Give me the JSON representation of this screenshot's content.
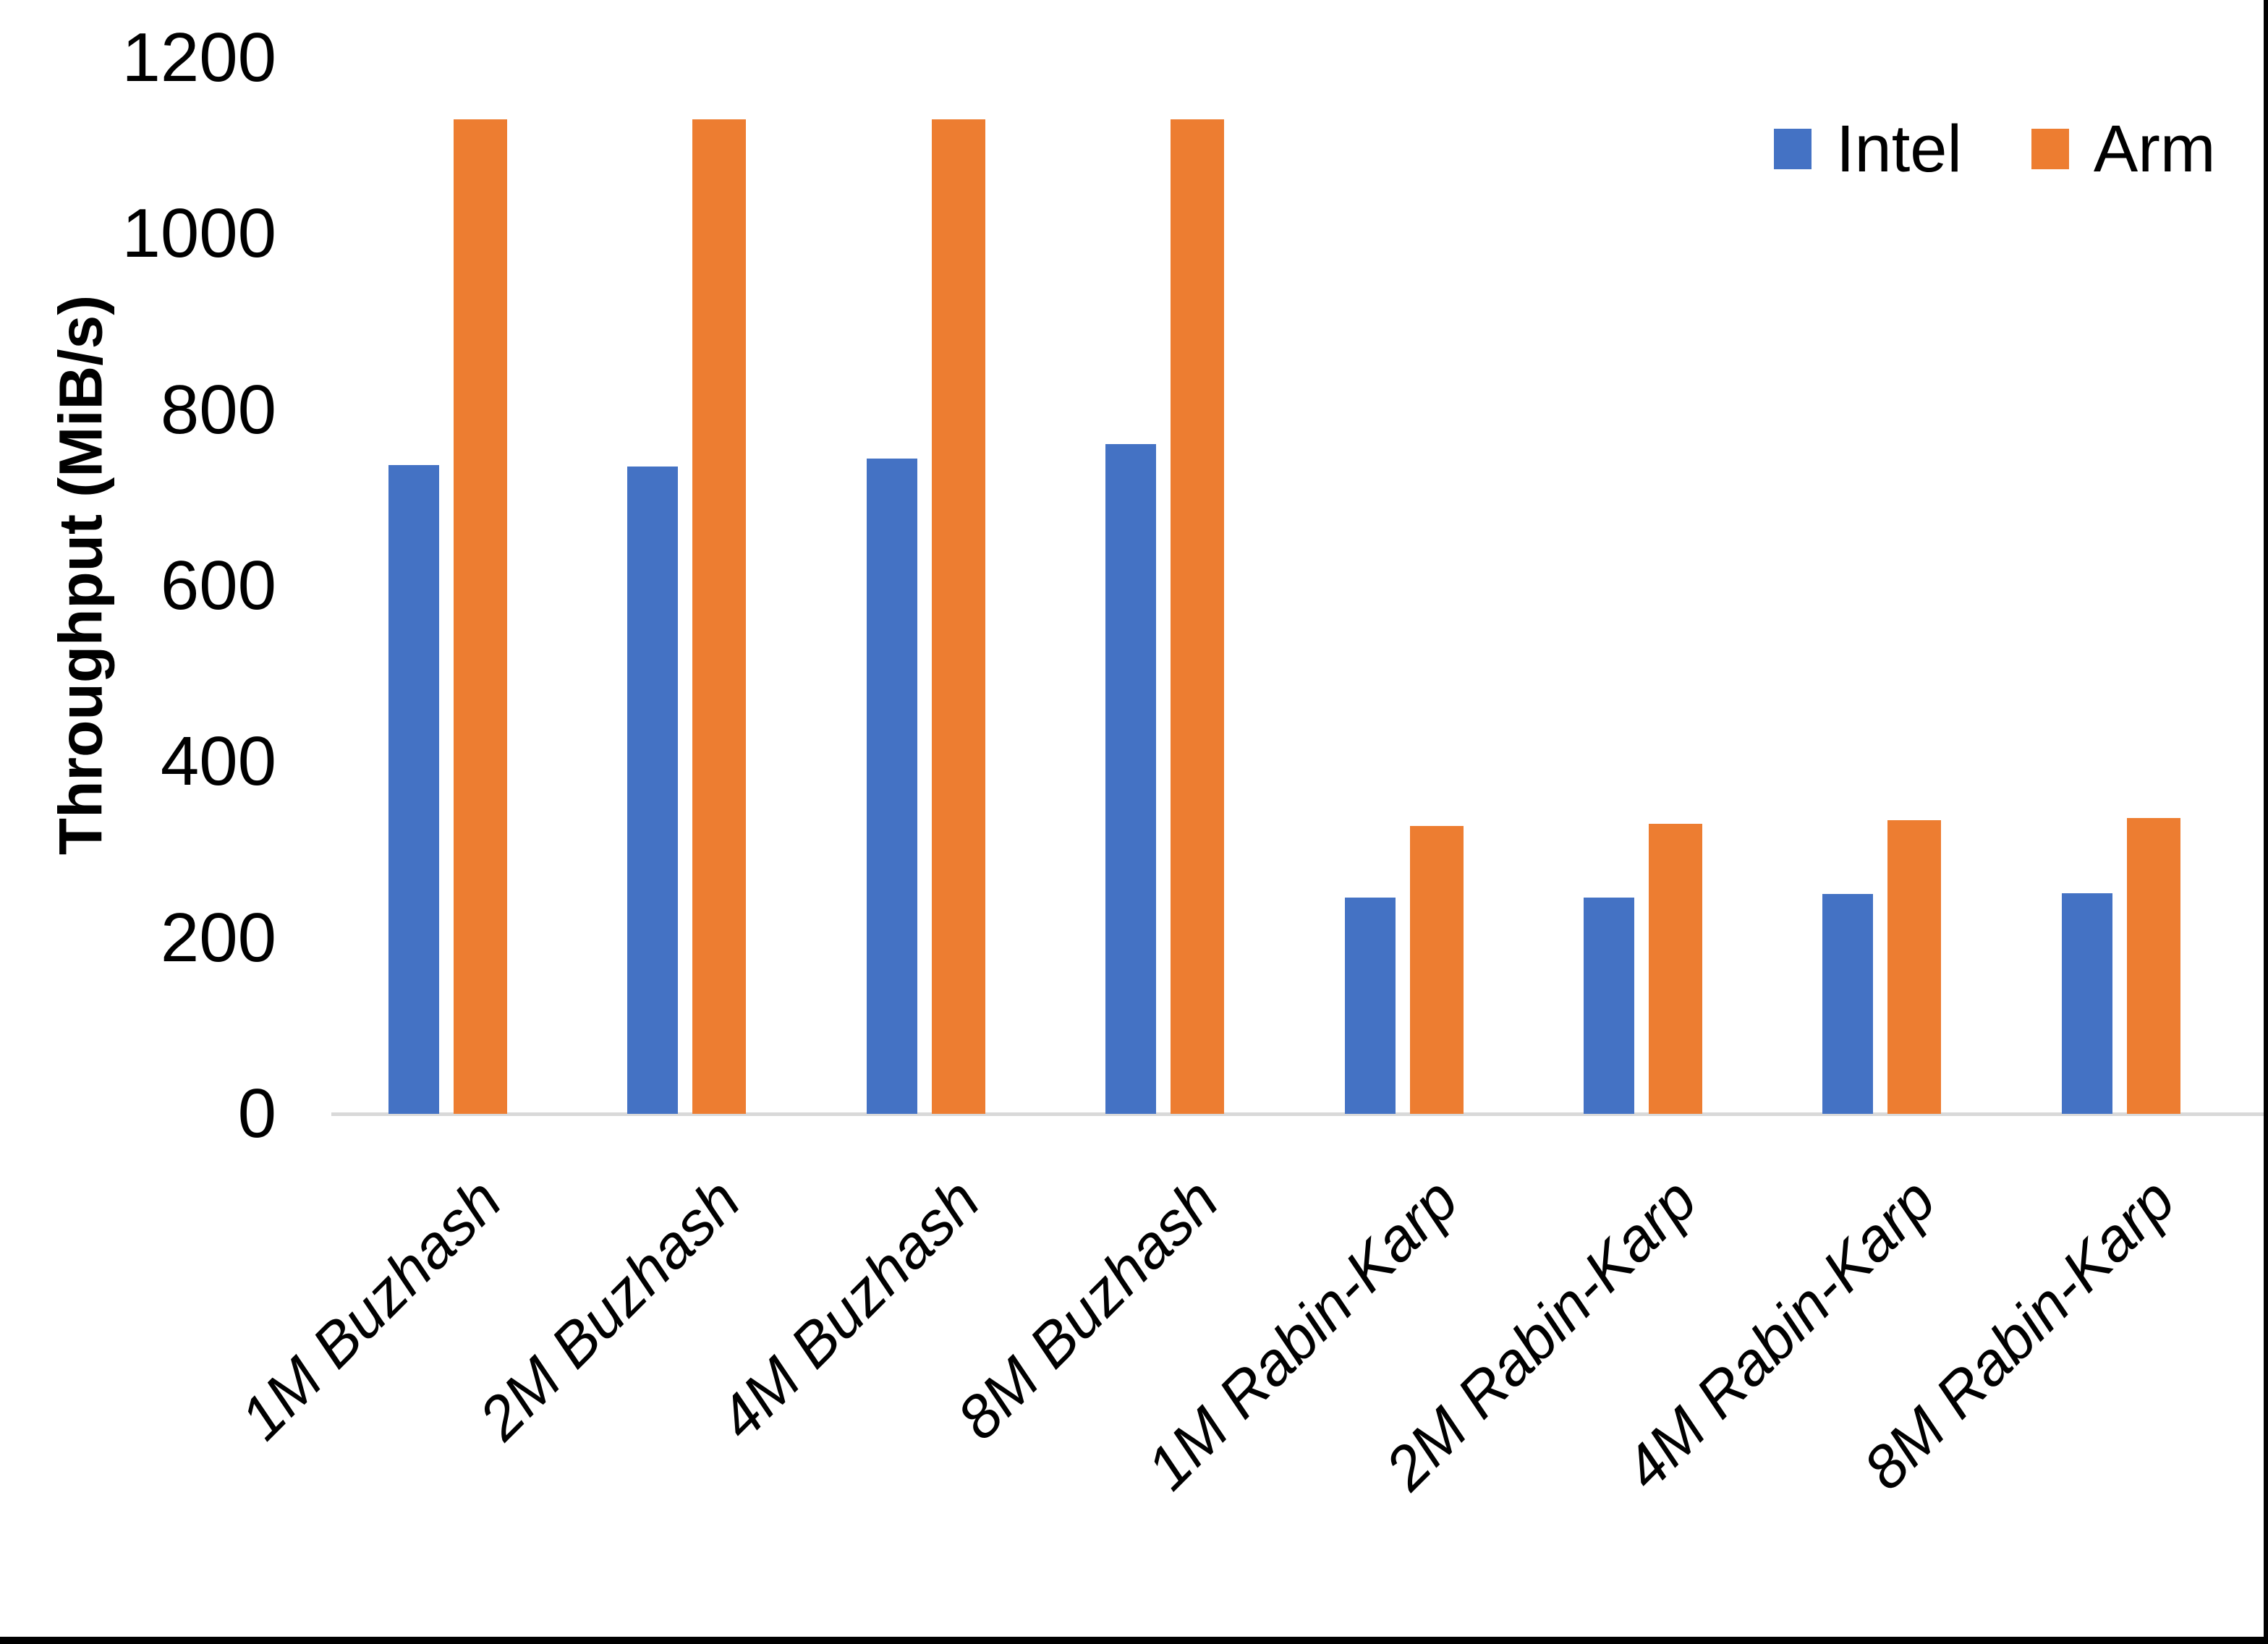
{
  "chart_data": {
    "type": "bar",
    "title": "",
    "xlabel": "",
    "ylabel": "Throughput (MiB/s)",
    "ylim": [
      0,
      1200
    ],
    "yticks": [
      0,
      200,
      400,
      600,
      800,
      1000,
      1200
    ],
    "grid": false,
    "legend_position": "top-right",
    "axis_line_color": "#D9D9D9",
    "text_color": "#000000",
    "categories": [
      "1M Buzhash",
      "2M Buzhash",
      "4M Buzhash",
      "8M Buzhash",
      "1M Rabin-Karp",
      "2M Rabin-Karp",
      "4M Rabin-Karp",
      "8M Rabin-Karp"
    ],
    "series": [
      {
        "name": "Intel",
        "color": "#4472C4",
        "values": [
          737,
          736,
          745,
          761,
          246,
          246,
          250,
          251
        ]
      },
      {
        "name": "Arm",
        "color": "#ED7D31",
        "values": [
          1130,
          1130,
          1130,
          1130,
          327,
          330,
          334,
          336
        ]
      }
    ]
  }
}
